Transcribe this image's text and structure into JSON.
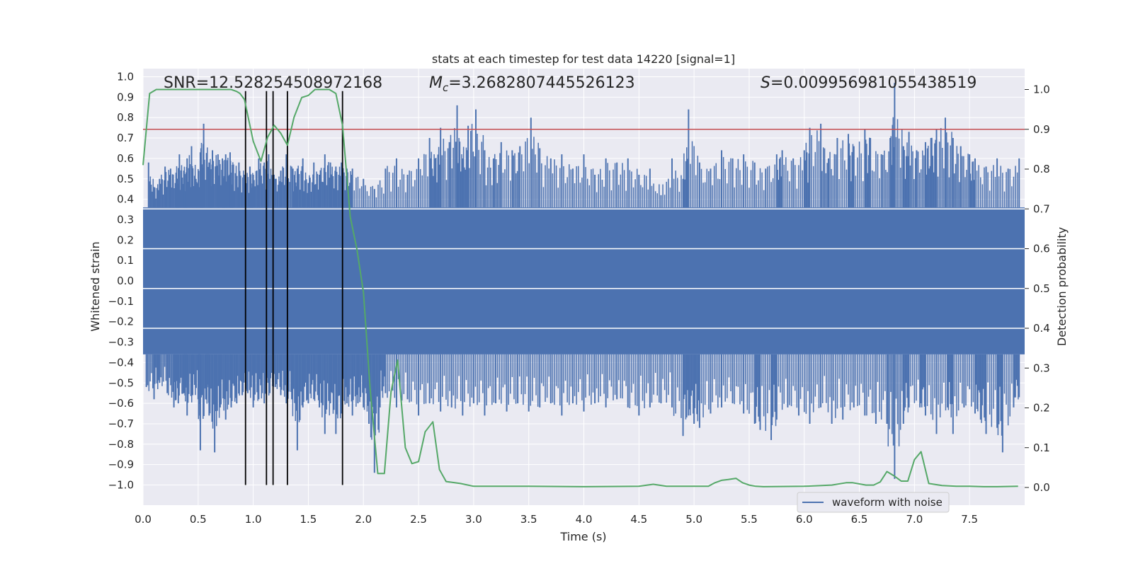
{
  "chart_data": {
    "type": "line",
    "title": "stats at each timestep for test data 14220 [signal=1]",
    "xlabel": "Time (s)",
    "ylabel": "Whitened strain",
    "ylabel_right": "Detection probability",
    "xlim": [
      0.0,
      8.0
    ],
    "ylim": [
      -1.1,
      1.05
    ],
    "ylim_right": [
      -0.05,
      1.03
    ],
    "x_ticks": [
      "0.0",
      "0.5",
      "1.0",
      "1.5",
      "2.0",
      "2.5",
      "3.0",
      "3.5",
      "4.0",
      "4.5",
      "5.0",
      "5.5",
      "6.0",
      "6.5",
      "7.0",
      "7.5"
    ],
    "y_ticks": [
      "1.0",
      "0.9",
      "0.8",
      "0.7",
      "0.6",
      "0.5",
      "0.4",
      "0.3",
      "0.2",
      "0.1",
      "0.0",
      "-0.1",
      "-0.2",
      "-0.3",
      "-0.4",
      "-0.5",
      "-0.6",
      "-0.7",
      "-0.8",
      "-0.9",
      "-1.0"
    ],
    "y_ticks_right": [
      "1.0",
      "0.9",
      "0.8",
      "0.7",
      "0.6",
      "0.5",
      "0.4",
      "0.3",
      "0.2",
      "0.1",
      "0.0"
    ],
    "annotations": {
      "snr": "SNR=12.528254508972168",
      "mc_symbol": "M",
      "mc_sub": "c",
      "mc_value": "=3.2682807445526123",
      "s_symbol": "S",
      "s_value": "=0.009956981055438519"
    },
    "legend": {
      "label": "waveform with noise",
      "location": "lower-right"
    },
    "threshold": {
      "value": 0.9,
      "color": "#c44e52",
      "axis": "right"
    },
    "vlines": [
      0.93,
      1.12,
      1.18,
      1.31,
      1.81
    ],
    "waveform": {
      "name": "waveform with noise",
      "color": "#4c72b0",
      "axis": "left",
      "band": 0.36,
      "peaks_pos": [
        [
          0.05,
          0.58
        ],
        [
          0.1,
          0.46
        ],
        [
          0.15,
          0.5
        ],
        [
          0.2,
          0.56
        ],
        [
          0.25,
          0.55
        ],
        [
          0.3,
          0.53
        ],
        [
          0.33,
          0.62
        ],
        [
          0.37,
          0.54
        ],
        [
          0.4,
          0.6
        ],
        [
          0.44,
          0.66
        ],
        [
          0.48,
          0.5
        ],
        [
          0.52,
          0.63
        ],
        [
          0.55,
          0.77
        ],
        [
          0.6,
          0.58
        ],
        [
          0.63,
          0.64
        ],
        [
          0.68,
          0.62
        ],
        [
          0.72,
          0.6
        ],
        [
          0.75,
          0.62
        ],
        [
          0.79,
          0.63
        ],
        [
          0.82,
          0.57
        ],
        [
          0.87,
          0.58
        ],
        [
          0.92,
          0.52
        ],
        [
          0.97,
          0.56
        ],
        [
          1.0,
          0.52
        ],
        [
          1.05,
          0.6
        ],
        [
          1.1,
          0.58
        ],
        [
          1.14,
          0.62
        ],
        [
          1.2,
          0.5
        ],
        [
          1.25,
          0.54
        ],
        [
          1.3,
          0.62
        ],
        [
          1.36,
          0.55
        ],
        [
          1.4,
          0.55
        ],
        [
          1.45,
          0.6
        ],
        [
          1.5,
          0.48
        ],
        [
          1.55,
          0.58
        ],
        [
          1.6,
          0.52
        ],
        [
          1.65,
          0.62
        ],
        [
          1.7,
          0.58
        ],
        [
          1.75,
          0.56
        ],
        [
          1.8,
          0.58
        ],
        [
          1.85,
          0.55
        ],
        [
          1.9,
          0.55
        ],
        [
          2.0,
          0.5
        ],
        [
          2.1,
          0.45
        ],
        [
          2.2,
          0.55
        ],
        [
          2.3,
          0.6
        ],
        [
          2.4,
          0.52
        ],
        [
          2.5,
          0.6
        ],
        [
          2.6,
          0.7
        ],
        [
          2.65,
          0.6
        ],
        [
          2.7,
          0.75
        ],
        [
          2.78,
          0.68
        ],
        [
          2.85,
          0.86
        ],
        [
          2.9,
          0.6
        ],
        [
          2.95,
          0.76
        ],
        [
          3.02,
          0.84
        ],
        [
          3.1,
          0.64
        ],
        [
          3.18,
          0.6
        ],
        [
          3.25,
          0.68
        ],
        [
          3.35,
          0.64
        ],
        [
          3.42,
          0.66
        ],
        [
          3.52,
          0.8
        ],
        [
          3.6,
          0.65
        ],
        [
          3.7,
          0.6
        ],
        [
          3.8,
          0.62
        ],
        [
          3.9,
          0.55
        ],
        [
          4.0,
          0.62
        ],
        [
          4.1,
          0.52
        ],
        [
          4.2,
          0.6
        ],
        [
          4.3,
          0.58
        ],
        [
          4.4,
          0.6
        ],
        [
          4.5,
          0.52
        ],
        [
          4.6,
          0.55
        ],
        [
          4.7,
          0.42
        ],
        [
          4.8,
          0.6
        ],
        [
          4.9,
          0.5
        ],
        [
          4.95,
          0.84
        ],
        [
          5.05,
          0.58
        ],
        [
          5.15,
          0.55
        ],
        [
          5.25,
          0.64
        ],
        [
          5.35,
          0.6
        ],
        [
          5.45,
          0.62
        ],
        [
          5.55,
          0.58
        ],
        [
          5.65,
          0.55
        ],
        [
          5.75,
          0.62
        ],
        [
          5.8,
          0.64
        ],
        [
          5.9,
          0.6
        ],
        [
          6.0,
          0.64
        ],
        [
          6.05,
          0.75
        ],
        [
          6.15,
          0.77
        ],
        [
          6.22,
          0.6
        ],
        [
          6.3,
          0.7
        ],
        [
          6.4,
          0.72
        ],
        [
          6.45,
          0.66
        ],
        [
          6.55,
          0.74
        ],
        [
          6.6,
          0.7
        ],
        [
          6.7,
          0.62
        ],
        [
          6.78,
          0.7
        ],
        [
          6.82,
          0.97
        ],
        [
          6.9,
          0.66
        ],
        [
          6.95,
          0.73
        ],
        [
          7.02,
          0.64
        ],
        [
          7.1,
          0.68
        ],
        [
          7.15,
          0.7
        ],
        [
          7.2,
          0.74
        ],
        [
          7.28,
          0.8
        ],
        [
          7.35,
          0.7
        ],
        [
          7.42,
          0.66
        ],
        [
          7.5,
          0.62
        ],
        [
          7.55,
          0.6
        ],
        [
          7.65,
          0.56
        ],
        [
          7.75,
          0.6
        ],
        [
          7.85,
          0.55
        ],
        [
          7.95,
          0.6
        ]
      ],
      "peaks_neg": [
        [
          0.03,
          -0.52
        ],
        [
          0.1,
          -0.58
        ],
        [
          0.15,
          -0.5
        ],
        [
          0.22,
          -0.55
        ],
        [
          0.28,
          -0.62
        ],
        [
          0.32,
          -0.6
        ],
        [
          0.37,
          -0.55
        ],
        [
          0.4,
          -0.66
        ],
        [
          0.45,
          -0.56
        ],
        [
          0.5,
          -0.58
        ],
        [
          0.52,
          -0.83
        ],
        [
          0.57,
          -0.58
        ],
        [
          0.6,
          -0.66
        ],
        [
          0.65,
          -0.84
        ],
        [
          0.7,
          -0.62
        ],
        [
          0.75,
          -0.68
        ],
        [
          0.8,
          -0.62
        ],
        [
          0.85,
          -0.6
        ],
        [
          0.9,
          -0.56
        ],
        [
          0.95,
          -0.55
        ],
        [
          1.0,
          -0.62
        ],
        [
          1.05,
          -0.58
        ],
        [
          1.1,
          -0.6
        ],
        [
          1.15,
          -0.55
        ],
        [
          1.2,
          -0.52
        ],
        [
          1.25,
          -0.56
        ],
        [
          1.3,
          -0.6
        ],
        [
          1.35,
          -0.58
        ],
        [
          1.4,
          -0.83
        ],
        [
          1.45,
          -0.62
        ],
        [
          1.5,
          -0.6
        ],
        [
          1.55,
          -0.58
        ],
        [
          1.6,
          -0.62
        ],
        [
          1.65,
          -0.75
        ],
        [
          1.7,
          -0.6
        ],
        [
          1.75,
          -0.75
        ],
        [
          1.8,
          -0.65
        ],
        [
          1.85,
          -0.6
        ],
        [
          1.9,
          -0.66
        ],
        [
          1.95,
          -0.6
        ],
        [
          2.0,
          -0.62
        ],
        [
          2.05,
          -0.7
        ],
        [
          2.1,
          -0.94
        ],
        [
          2.15,
          -0.62
        ],
        [
          2.2,
          -0.55
        ],
        [
          2.3,
          -0.62
        ],
        [
          2.4,
          -0.58
        ],
        [
          2.5,
          -0.66
        ],
        [
          2.6,
          -0.6
        ],
        [
          2.7,
          -0.64
        ],
        [
          2.8,
          -0.62
        ],
        [
          2.9,
          -0.66
        ],
        [
          3.0,
          -0.6
        ],
        [
          3.1,
          -0.66
        ],
        [
          3.2,
          -0.6
        ],
        [
          3.3,
          -0.64
        ],
        [
          3.4,
          -0.6
        ],
        [
          3.5,
          -0.64
        ],
        [
          3.6,
          -0.62
        ],
        [
          3.7,
          -0.6
        ],
        [
          3.8,
          -0.66
        ],
        [
          3.9,
          -0.6
        ],
        [
          4.0,
          -0.64
        ],
        [
          4.1,
          -0.6
        ],
        [
          4.2,
          -0.62
        ],
        [
          4.3,
          -0.58
        ],
        [
          4.4,
          -0.62
        ],
        [
          4.5,
          -0.66
        ],
        [
          4.6,
          -0.62
        ],
        [
          4.7,
          -0.6
        ],
        [
          4.8,
          -0.62
        ],
        [
          4.9,
          -0.76
        ],
        [
          4.95,
          -0.66
        ],
        [
          5.0,
          -0.7
        ],
        [
          5.05,
          -0.72
        ],
        [
          5.15,
          -0.65
        ],
        [
          5.25,
          -0.62
        ],
        [
          5.35,
          -0.6
        ],
        [
          5.45,
          -0.65
        ],
        [
          5.55,
          -0.7
        ],
        [
          5.6,
          -0.73
        ],
        [
          5.7,
          -0.78
        ],
        [
          5.75,
          -0.68
        ],
        [
          5.85,
          -0.62
        ],
        [
          5.95,
          -0.66
        ],
        [
          6.05,
          -0.7
        ],
        [
          6.15,
          -0.62
        ],
        [
          6.25,
          -0.7
        ],
        [
          6.35,
          -0.68
        ],
        [
          6.45,
          -0.62
        ],
        [
          6.55,
          -0.66
        ],
        [
          6.65,
          -0.7
        ],
        [
          6.75,
          -0.7
        ],
        [
          6.82,
          -0.97
        ],
        [
          6.9,
          -0.7
        ],
        [
          6.95,
          -0.62
        ],
        [
          7.05,
          -0.62
        ],
        [
          7.1,
          -0.66
        ],
        [
          7.2,
          -0.75
        ],
        [
          7.3,
          -0.62
        ],
        [
          7.35,
          -0.75
        ],
        [
          7.45,
          -0.62
        ],
        [
          7.55,
          -0.65
        ],
        [
          7.6,
          -0.68
        ],
        [
          7.65,
          -0.75
        ],
        [
          7.75,
          -0.72
        ],
        [
          7.8,
          -0.84
        ],
        [
          7.9,
          -0.62
        ],
        [
          7.95,
          -0.57
        ]
      ]
    },
    "probability": {
      "name": "detection probability",
      "color": "#55a868",
      "axis": "right",
      "x": [
        0.0,
        0.06,
        0.12,
        0.2,
        0.3,
        0.45,
        0.6,
        0.7,
        0.8,
        0.85,
        0.88,
        0.92,
        1.0,
        1.07,
        1.13,
        1.19,
        1.25,
        1.31,
        1.37,
        1.44,
        1.5,
        1.56,
        1.63,
        1.69,
        1.75,
        1.81,
        1.88,
        1.94,
        2.0,
        2.06,
        2.13,
        2.19,
        2.25,
        2.31,
        2.38,
        2.44,
        2.5,
        2.56,
        2.63,
        2.69,
        2.75,
        2.88,
        3.0,
        3.5,
        4.0,
        4.5,
        4.63,
        4.75,
        5.0,
        5.13,
        5.19,
        5.25,
        5.31,
        5.38,
        5.44,
        5.5,
        5.56,
        5.63,
        6.0,
        6.25,
        6.38,
        6.44,
        6.56,
        6.63,
        6.69,
        6.75,
        6.81,
        6.88,
        6.94,
        7.0,
        7.06,
        7.13,
        7.25,
        7.38,
        7.5,
        7.63,
        7.75,
        7.94
      ],
      "y": [
        0.81,
        0.99,
        1.0,
        1.0,
        1.0,
        1.0,
        1.0,
        1.0,
        1.0,
        0.995,
        0.99,
        0.975,
        0.87,
        0.82,
        0.88,
        0.91,
        0.89,
        0.86,
        0.93,
        0.98,
        0.985,
        1.0,
        1.0,
        1.0,
        0.99,
        0.91,
        0.68,
        0.6,
        0.49,
        0.25,
        0.035,
        0.035,
        0.24,
        0.32,
        0.1,
        0.06,
        0.065,
        0.14,
        0.165,
        0.045,
        0.015,
        0.01,
        0.003,
        0.003,
        0.002,
        0.003,
        0.008,
        0.003,
        0.003,
        0.003,
        0.012,
        0.018,
        0.02,
        0.023,
        0.012,
        0.006,
        0.003,
        0.002,
        0.003,
        0.006,
        0.012,
        0.012,
        0.006,
        0.006,
        0.014,
        0.04,
        0.03,
        0.016,
        0.016,
        0.07,
        0.09,
        0.01,
        0.005,
        0.003,
        0.003,
        0.002,
        0.002,
        0.003
      ]
    }
  }
}
